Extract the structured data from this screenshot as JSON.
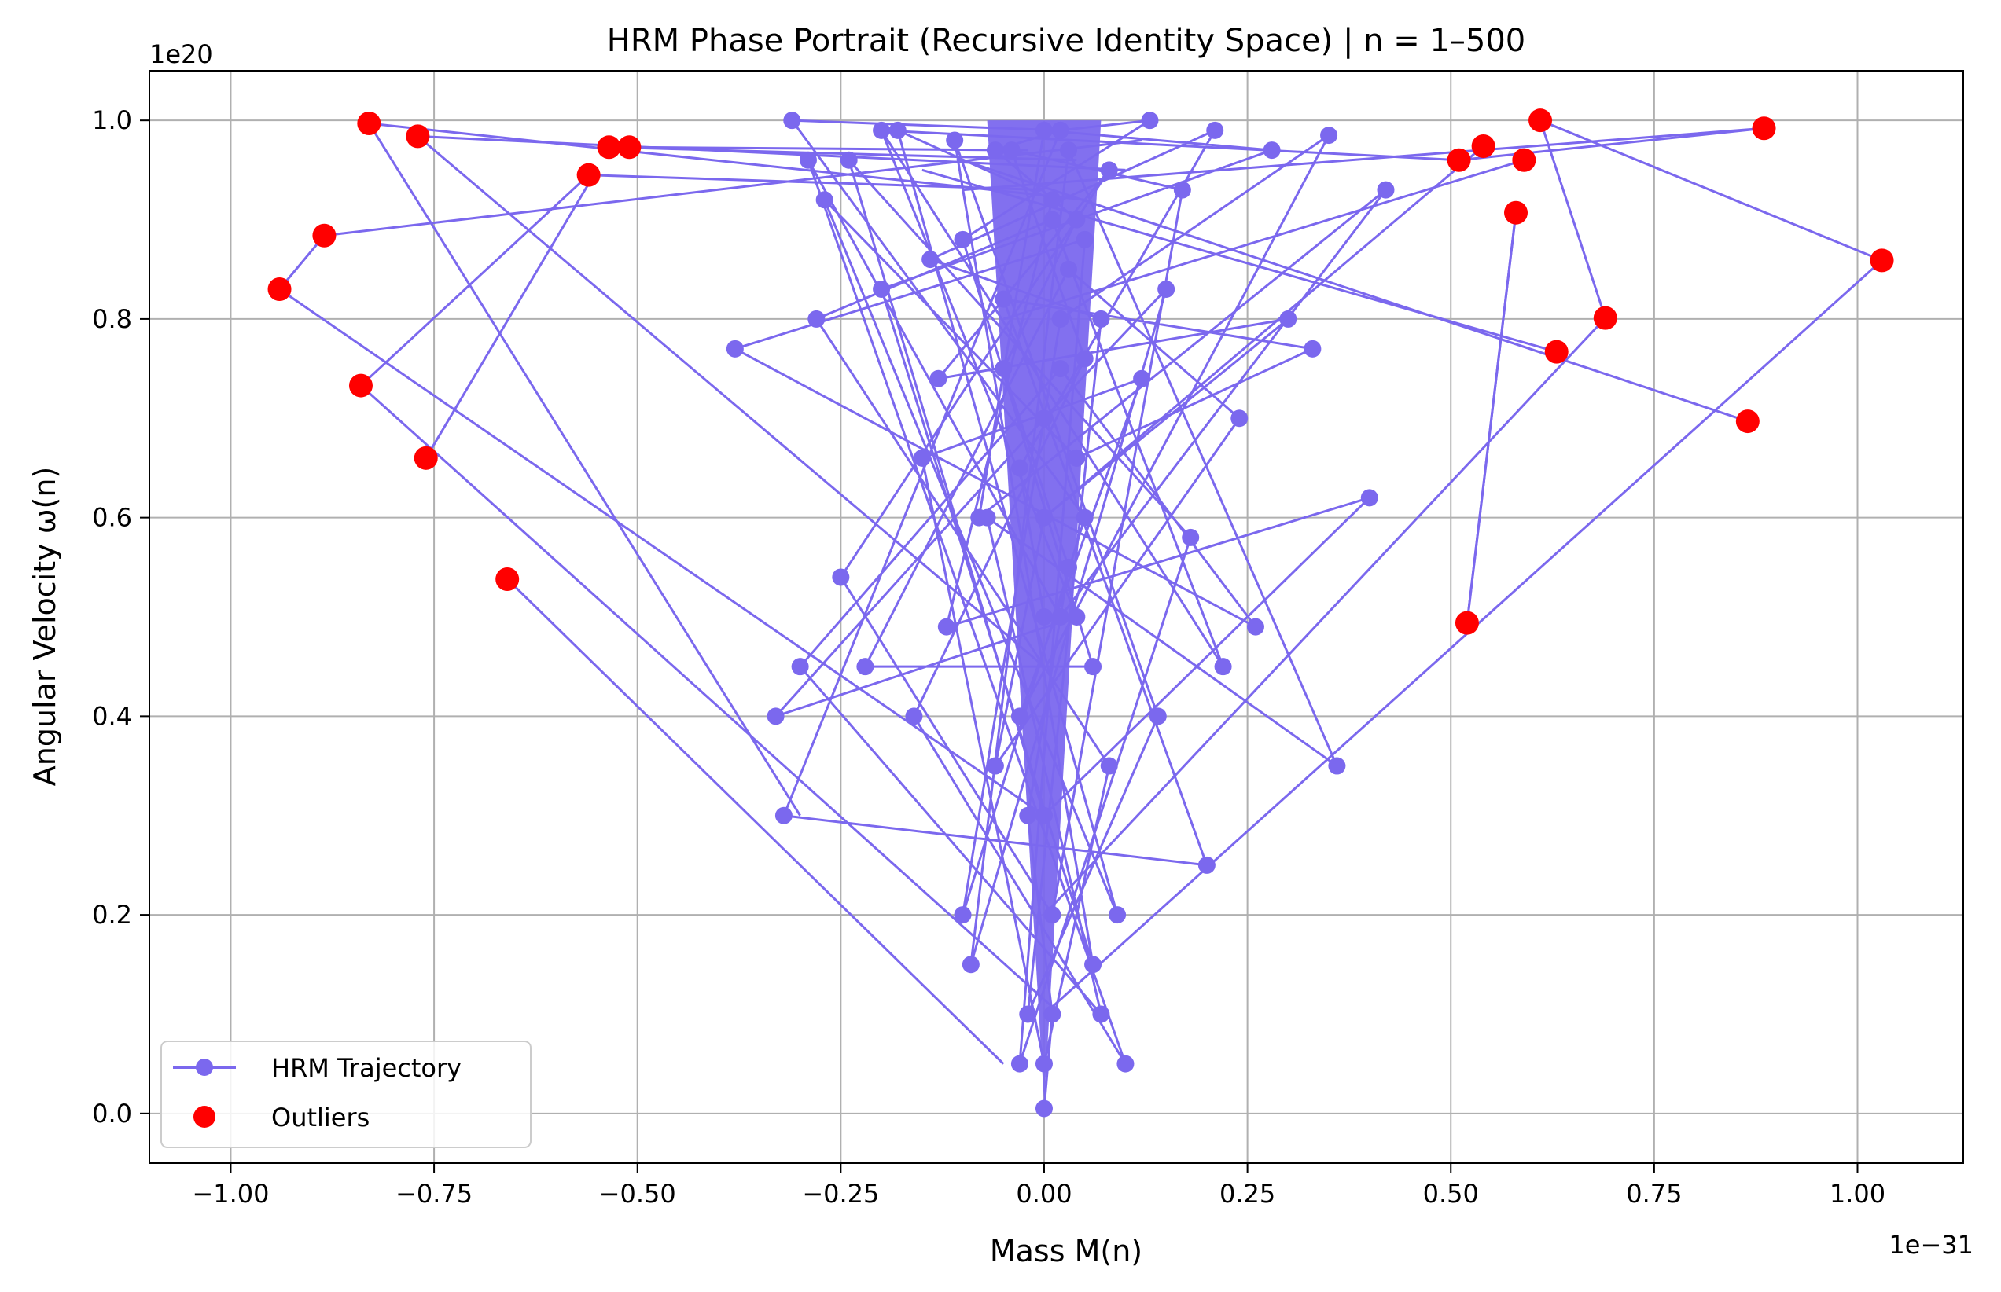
{
  "chart_data": {
    "type": "line",
    "title": "HRM Phase Portrait (Recursive Identity Space) | n = 1–500",
    "xlabel": "Mass M(n)",
    "ylabel": "Angular Velocity ω(n)",
    "x_offset_text": "1e−31",
    "y_offset_text": "1e20",
    "xlim": [
      -1.1,
      1.13
    ],
    "ylim": [
      -0.05,
      1.05
    ],
    "x_ticks": [
      -1.0,
      -0.75,
      -0.5,
      -0.25,
      0.0,
      0.25,
      0.5,
      0.75,
      1.0
    ],
    "x_tick_labels": [
      "−1.00",
      "−0.75",
      "−0.50",
      "−0.25",
      "0.00",
      "0.25",
      "0.50",
      "0.75",
      "1.00"
    ],
    "y_ticks": [
      0.0,
      0.2,
      0.4,
      0.6,
      0.8,
      1.0
    ],
    "y_tick_labels": [
      "0.0",
      "0.2",
      "0.4",
      "0.6",
      "0.8",
      "1.0"
    ],
    "grid": true,
    "legend_position": "lower-left",
    "series": [
      {
        "name": "HRM Trajectory",
        "color": "#7b68ee",
        "marker": "circle",
        "points": [
          [
            0.0,
            0.005
          ],
          [
            0.01,
            0.1
          ],
          [
            -0.02,
            0.3
          ],
          [
            0.03,
            0.55
          ],
          [
            -0.05,
            0.75
          ],
          [
            0.04,
            0.9
          ],
          [
            -0.06,
            0.97
          ],
          [
            0.02,
            0.99
          ],
          [
            -0.31,
            1.0
          ],
          [
            0.05,
            0.6
          ],
          [
            -0.1,
            0.2
          ],
          [
            0.02,
            0.8
          ],
          [
            0.35,
            0.985
          ],
          [
            -0.03,
            0.4
          ],
          [
            0.12,
            0.74
          ],
          [
            -0.15,
            0.66
          ],
          [
            0.0,
            0.05
          ],
          [
            0.08,
            0.35
          ],
          [
            -0.28,
            0.8
          ],
          [
            0.01,
            0.9
          ],
          [
            0.22,
            0.45
          ],
          [
            -0.2,
            0.99
          ],
          [
            0.04,
            0.5
          ],
          [
            -0.33,
            0.4
          ],
          [
            0.0,
            0.7
          ],
          [
            0.15,
            0.83
          ],
          [
            -0.09,
            0.15
          ],
          [
            0.03,
            0.97
          ],
          [
            0.36,
            0.35
          ],
          [
            -0.07,
            0.6
          ],
          [
            0.07,
            0.1
          ],
          [
            -0.3,
            0.45
          ],
          [
            0.02,
            0.75
          ],
          [
            0.26,
            0.49
          ],
          [
            -0.38,
            0.77
          ],
          [
            0.05,
            0.88
          ],
          [
            -0.03,
            0.05
          ],
          [
            0.18,
            0.58
          ],
          [
            -0.24,
            0.96
          ],
          [
            0.0,
            0.3
          ],
          [
            0.4,
            0.62
          ],
          [
            -0.12,
            0.49
          ],
          [
            0.01,
            0.92
          ],
          [
            -0.18,
            0.99
          ],
          [
            0.09,
            0.2
          ],
          [
            -0.27,
            0.92
          ],
          [
            0.04,
            0.66
          ],
          [
            0.33,
            0.77
          ],
          [
            -0.05,
            0.82
          ],
          [
            0.2,
            0.25
          ],
          [
            -0.32,
            0.3
          ],
          [
            0.02,
            0.99
          ],
          [
            0.13,
            1.0
          ],
          [
            -0.1,
            0.88
          ],
          [
            0.06,
            0.45
          ],
          [
            -0.22,
            0.45
          ],
          [
            0.03,
            0.85
          ],
          [
            0.24,
            0.7
          ],
          [
            -0.06,
            0.35
          ],
          [
            0.0,
            0.6
          ],
          [
            0.3,
            0.8
          ],
          [
            -0.13,
            0.74
          ],
          [
            0.08,
            0.95
          ],
          [
            -0.25,
            0.54
          ],
          [
            0.01,
            0.2
          ],
          [
            0.17,
            0.93
          ],
          [
            -0.04,
            0.97
          ],
          [
            0.05,
            0.76
          ],
          [
            -0.16,
            0.4
          ],
          [
            0.1,
            0.05
          ],
          [
            -0.29,
            0.96
          ],
          [
            0.02,
            0.5
          ],
          [
            0.42,
            0.93
          ],
          [
            -0.08,
            0.6
          ],
          [
            0.0,
            0.99
          ],
          [
            0.28,
            0.97
          ],
          [
            -0.2,
            0.83
          ],
          [
            0.06,
            0.15
          ],
          [
            -0.11,
            0.98
          ],
          [
            0.14,
            0.4
          ],
          [
            -0.02,
            0.1
          ],
          [
            0.07,
            0.8
          ],
          [
            -0.14,
            0.86
          ],
          [
            0.21,
            0.99
          ],
          [
            -0.03,
            0.65
          ],
          [
            0.0,
            0.5
          ]
        ]
      },
      {
        "name": "Outliers",
        "color": "#ff0000",
        "marker": "circle",
        "points": [
          [
            -0.83,
            0.997
          ],
          [
            -0.77,
            0.984
          ],
          [
            -0.535,
            0.973
          ],
          [
            -0.51,
            0.973
          ],
          [
            -0.56,
            0.945
          ],
          [
            -0.885,
            0.884
          ],
          [
            -0.94,
            0.83
          ],
          [
            -0.84,
            0.733
          ],
          [
            -0.76,
            0.66
          ],
          [
            -0.66,
            0.538
          ],
          [
            0.61,
            1.0
          ],
          [
            0.885,
            0.992
          ],
          [
            0.54,
            0.974
          ],
          [
            0.51,
            0.96
          ],
          [
            0.59,
            0.96
          ],
          [
            0.58,
            0.907
          ],
          [
            1.03,
            0.859
          ],
          [
            0.69,
            0.801
          ],
          [
            0.63,
            0.767
          ],
          [
            0.865,
            0.697
          ],
          [
            0.52,
            0.494
          ]
        ]
      }
    ],
    "trajectory_links": [
      [
        -0.83,
        0.997,
        0.05,
        0.92
      ],
      [
        -0.77,
        0.984,
        0.1,
        0.95
      ],
      [
        -0.535,
        0.973,
        0.04,
        0.96
      ],
      [
        -0.51,
        0.973,
        -0.02,
        0.97
      ],
      [
        -0.56,
        0.945,
        0.0,
        0.93
      ],
      [
        -0.885,
        0.884,
        0.12,
        0.98
      ],
      [
        -0.94,
        0.83,
        0.0,
        0.3
      ],
      [
        -0.84,
        0.733,
        0.02,
        0.1
      ],
      [
        -0.76,
        0.66,
        -0.55,
        0.95
      ],
      [
        -0.66,
        0.538,
        -0.05,
        0.05
      ],
      [
        0.61,
        1.0,
        0.69,
        0.801
      ],
      [
        0.885,
        0.992,
        -0.1,
        0.93
      ],
      [
        0.54,
        0.974,
        0.0,
        0.6
      ],
      [
        0.51,
        0.96,
        -0.2,
        0.99
      ],
      [
        0.59,
        0.96,
        -0.05,
        0.8
      ],
      [
        0.58,
        0.907,
        0.52,
        0.494
      ],
      [
        1.03,
        0.859,
        0.0,
        0.1
      ],
      [
        0.69,
        0.801,
        0.0,
        0.2
      ],
      [
        0.63,
        0.767,
        -0.15,
        0.95
      ],
      [
        0.865,
        0.697,
        -0.1,
        0.96
      ],
      [
        0.52,
        0.494,
        0.58,
        0.907
      ],
      [
        -0.83,
        0.997,
        -0.3,
        0.3
      ],
      [
        -0.77,
        0.984,
        0.0,
        0.45
      ],
      [
        -0.94,
        0.83,
        -0.885,
        0.884
      ],
      [
        -0.84,
        0.733,
        -0.56,
        0.945
      ],
      [
        0.885,
        0.992,
        0.51,
        0.96
      ],
      [
        1.03,
        0.859,
        0.61,
        1.0
      ]
    ]
  },
  "legend": {
    "trajectory_label": "HRM Trajectory",
    "outliers_label": "Outliers"
  }
}
